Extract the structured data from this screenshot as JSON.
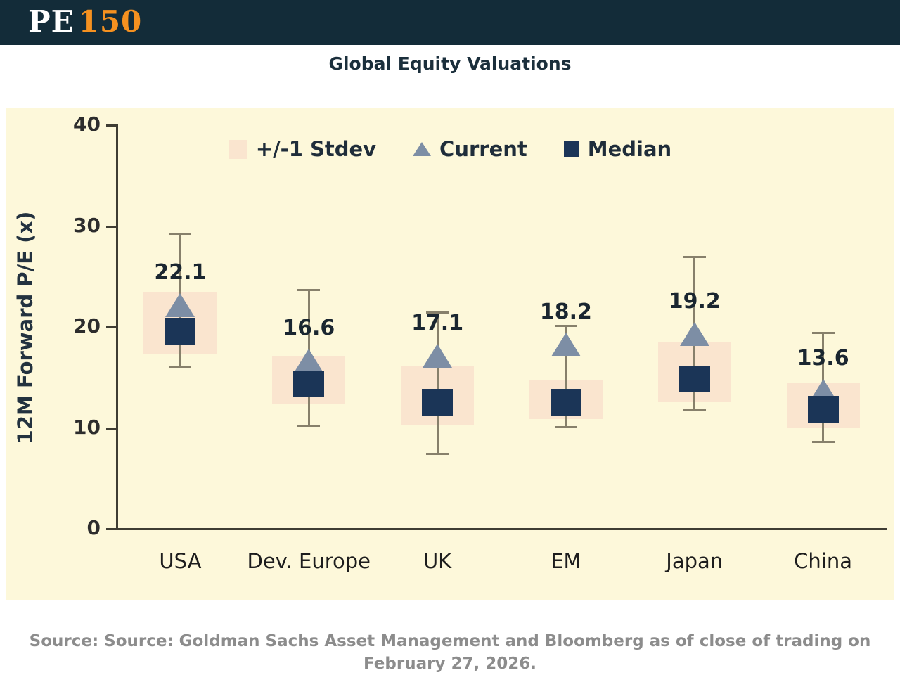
{
  "header": {
    "logo_pe": "PE",
    "logo_150": "150"
  },
  "title": "Global Equity Valuations",
  "legend": [
    {
      "label": "+/-1 Stdev",
      "marker": "band-swatch-icon"
    },
    {
      "label": "Current",
      "marker": "triangle-icon"
    },
    {
      "label": "Median",
      "marker": "square-icon"
    }
  ],
  "chart_data": {
    "type": "bar",
    "subtype": "range-band with current/median markers and min-max whiskers",
    "title": "Global Equity Valuations",
    "ylabel": "12M Forward P/E (x)",
    "xlabel": "",
    "ylim": [
      0,
      40
    ],
    "yticks": [
      0,
      10,
      20,
      30,
      40
    ],
    "grid": false,
    "legend_position": "top",
    "categories": [
      "USA",
      "Dev. Europe",
      "UK",
      "EM",
      "Japan",
      "China"
    ],
    "series": [
      {
        "name": "Current",
        "marker": "triangle",
        "values": [
          22.1,
          16.6,
          17.1,
          18.2,
          19.2,
          13.6
        ]
      },
      {
        "name": "Median",
        "marker": "square",
        "values": [
          19.5,
          14.3,
          12.5,
          12.5,
          14.8,
          11.8
        ]
      },
      {
        "name": "+/-1 Stdev",
        "marker": "band",
        "low": [
          17.3,
          12.3,
          10.2,
          10.8,
          12.5,
          9.9
        ],
        "high": [
          23.4,
          17.1,
          16.1,
          14.6,
          18.5,
          14.4
        ]
      },
      {
        "name": "Range",
        "marker": "whisker",
        "low": [
          15.9,
          10.1,
          7.3,
          10.0,
          11.7,
          8.5
        ],
        "high": [
          29.2,
          23.6,
          21.4,
          20.1,
          26.9,
          19.4
        ]
      }
    ],
    "point_labels": [
      "22.1",
      "16.6",
      "17.1",
      "18.2",
      "19.2",
      "13.6"
    ]
  },
  "colors": {
    "header_bg": "#132c39",
    "logo_pe": "#ffffff",
    "logo_150": "#f59120",
    "panel_bg": "#fdf8da",
    "band": "#fae5cf",
    "current_triangle": "#7d8ea5",
    "median_square": "#1b3557",
    "whisker": "#87806b",
    "axis": "#3f3d33",
    "source_text": "#8c8c8c"
  },
  "source": "Source: Source: Goldman Sachs Asset Management and Bloomberg as of close of trading on February 27, 2026."
}
